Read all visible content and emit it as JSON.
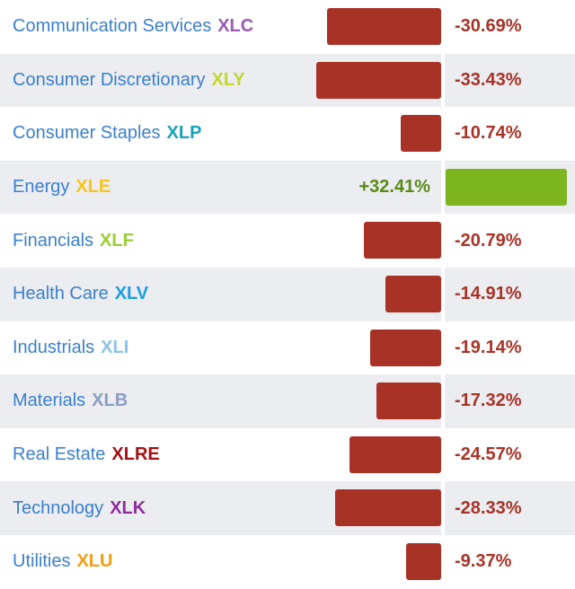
{
  "chart_data": {
    "type": "bar",
    "orientation": "horizontal",
    "colors": {
      "negative": "#a93226",
      "positive": "#7cb51f",
      "label": "#3a7fcf",
      "negative_text": "#a93226",
      "positive_text": "#5a8a16",
      "row_stripe": "#ebedf0"
    },
    "rows": [
      {
        "sector": "Communication Services",
        "ticker": "XLC",
        "ticker_color": "#9b59b6",
        "value": -30.69,
        "value_label": "-30.69%"
      },
      {
        "sector": "Consumer Discretionary",
        "ticker": "XLY",
        "ticker_color": "#c5d62c",
        "value": -33.43,
        "value_label": "-33.43%"
      },
      {
        "sector": "Consumer Staples",
        "ticker": "XLP",
        "ticker_color": "#17a2b8",
        "value": -10.74,
        "value_label": "-10.74%"
      },
      {
        "sector": "Energy",
        "ticker": "XLE",
        "ticker_color": "#f5c518",
        "value": 32.41,
        "value_label": "+32.41%"
      },
      {
        "sector": "Financials",
        "ticker": "XLF",
        "ticker_color": "#9acd32",
        "value": -20.79,
        "value_label": "-20.79%"
      },
      {
        "sector": "Health Care",
        "ticker": "XLV",
        "ticker_color": "#1a9ee6",
        "value": -14.91,
        "value_label": "-14.91%"
      },
      {
        "sector": "Industrials",
        "ticker": "XLI",
        "ticker_color": "#8cc3e8",
        "value": -19.14,
        "value_label": "-19.14%"
      },
      {
        "sector": "Materials",
        "ticker": "XLB",
        "ticker_color": "#8b9dc3",
        "value": -17.32,
        "value_label": "-17.32%"
      },
      {
        "sector": "Real Estate",
        "ticker": "XLRE",
        "ticker_color": "#a50f15",
        "value": -24.57,
        "value_label": "-24.57%"
      },
      {
        "sector": "Technology",
        "ticker": "XLK",
        "ticker_color": "#8e2d9e",
        "value": -28.33,
        "value_label": "-28.33%"
      },
      {
        "sector": "Utilities",
        "ticker": "XLU",
        "ticker_color": "#f39c12",
        "value": -9.37,
        "value_label": "-9.37%"
      }
    ]
  }
}
